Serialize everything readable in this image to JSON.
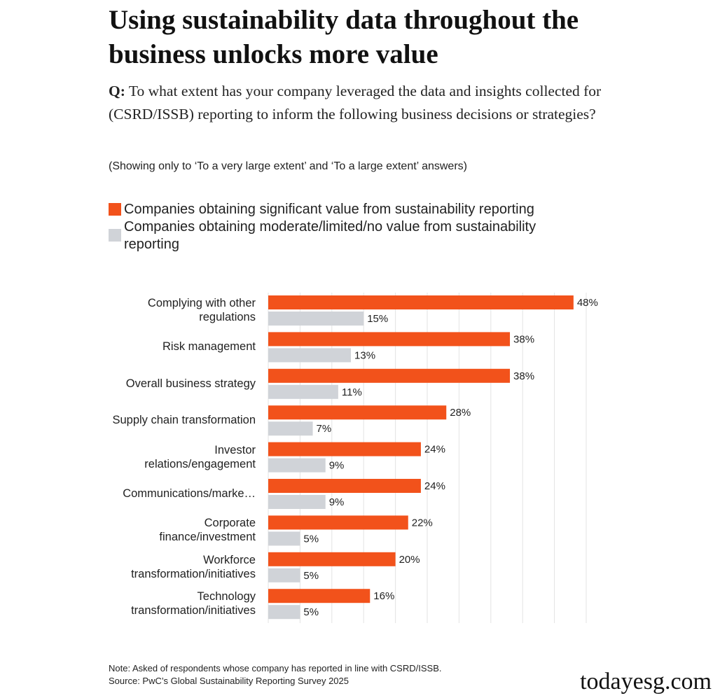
{
  "chart_data": {
    "type": "bar",
    "orientation": "horizontal",
    "title": "Using sustainability data throughout the business unlocks more value",
    "question_prefix": "Q:",
    "question": "To what extent has your company leveraged the data and insights collected for (CSRD/ISSB) reporting to inform the following business decisions or strategies?",
    "subtitle": "(Showing only to ‘To a very large extent’ and ‘To a large extent’ answers)",
    "categories": [
      "Complying with other regulations",
      "Risk management",
      "Overall business strategy",
      "Supply chain transformation",
      "Investor relations/engagement",
      "Communications/marke…",
      "Corporate finance/investment",
      "Workforce transformation/initiatives",
      "Technology transformation/initiatives"
    ],
    "series": [
      {
        "name": "Companies obtaining significant value from sustainability reporting",
        "color": "#f2521b",
        "values": [
          48,
          38,
          38,
          28,
          24,
          24,
          22,
          20,
          16
        ],
        "value_labels": [
          "48%",
          "38%",
          "38%",
          "28%",
          "24%",
          "24%",
          "22%",
          "20%",
          "16%"
        ]
      },
      {
        "name": "Companies obtaining moderate/limited/no value from sustainability reporting",
        "color": "#d0d3d8",
        "values": [
          15,
          13,
          11,
          7,
          9,
          9,
          5,
          5,
          5
        ],
        "value_labels": [
          "15%",
          "13%",
          "11%",
          "7%",
          "9%",
          "9%",
          "5%",
          "5%",
          "5%"
        ]
      }
    ],
    "xlim": [
      0,
      50
    ],
    "xticks": [
      0,
      5,
      10,
      15,
      20,
      25,
      30,
      35,
      40,
      45,
      50
    ],
    "grid": true,
    "notes": [
      "Note: Asked of respondents whose company has reported in line with CSRD/ISSB.",
      "Source: PwC’s Global Sustainability Reporting Survey 2025"
    ],
    "watermark": "todayesg.com"
  }
}
